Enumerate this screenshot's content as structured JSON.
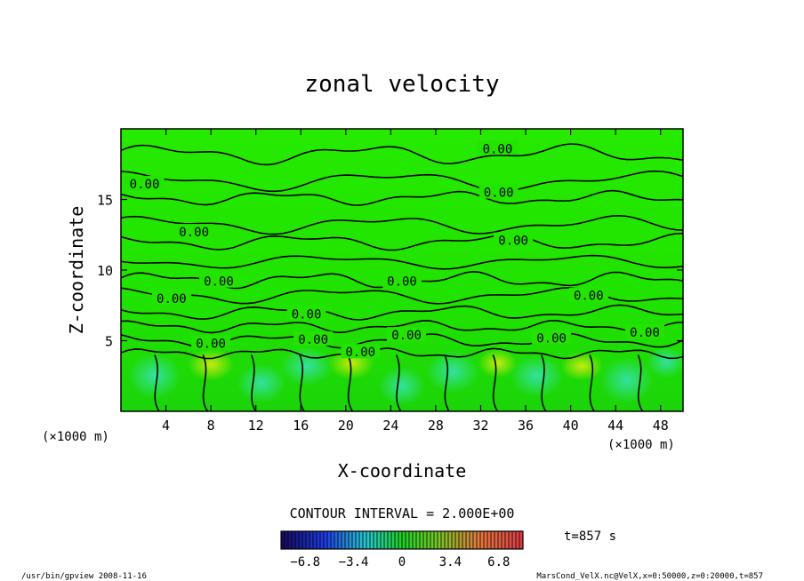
{
  "chart_data": {
    "type": "heatmap",
    "title": "zonal velocity",
    "xlabel": "X-coordinate",
    "ylabel": "Z-coordinate",
    "x_unit_left": "(×1000 m)",
    "x_unit_right": "(×1000 m)",
    "xlim": [
      0,
      50
    ],
    "ylim": [
      0,
      20
    ],
    "x_ticks": [
      {
        "v": 4,
        "label": "4"
      },
      {
        "v": 8,
        "label": "8"
      },
      {
        "v": 12,
        "label": "12"
      },
      {
        "v": 16,
        "label": "16"
      },
      {
        "v": 20,
        "label": "20"
      },
      {
        "v": 24,
        "label": "24"
      },
      {
        "v": 28,
        "label": "28"
      },
      {
        "v": 32,
        "label": "32"
      },
      {
        "v": 36,
        "label": "36"
      },
      {
        "v": 40,
        "label": "40"
      },
      {
        "v": 44,
        "label": "44"
      },
      {
        "v": 48,
        "label": "48"
      }
    ],
    "y_ticks": [
      {
        "v": 5,
        "label": "5"
      },
      {
        "v": 10,
        "label": "10"
      },
      {
        "v": 15,
        "label": "15"
      }
    ],
    "contour_labels": [
      {
        "x": 33.5,
        "z": 18.6,
        "text": "0.00"
      },
      {
        "x": 2.1,
        "z": 16.1,
        "text": "0.00"
      },
      {
        "x": 33.6,
        "z": 15.5,
        "text": "0.00"
      },
      {
        "x": 6.5,
        "z": 12.7,
        "text": "0.00"
      },
      {
        "x": 34.9,
        "z": 12.1,
        "text": "0.00"
      },
      {
        "x": 8.7,
        "z": 9.2,
        "text": "0.00"
      },
      {
        "x": 25.0,
        "z": 9.2,
        "text": "0.00"
      },
      {
        "x": 4.5,
        "z": 8.0,
        "text": "0.00"
      },
      {
        "x": 41.6,
        "z": 8.2,
        "text": "0.00"
      },
      {
        "x": 16.5,
        "z": 6.9,
        "text": "0.00"
      },
      {
        "x": 46.6,
        "z": 5.6,
        "text": "0.00"
      },
      {
        "x": 8.0,
        "z": 4.8,
        "text": "0.00"
      },
      {
        "x": 17.1,
        "z": 5.1,
        "text": "0.00"
      },
      {
        "x": 25.4,
        "z": 5.4,
        "text": "0.00"
      },
      {
        "x": 38.3,
        "z": 5.2,
        "text": "0.00"
      },
      {
        "x": 21.3,
        "z": 4.2,
        "text": "0.00"
      }
    ],
    "colorbar": {
      "min": -8.5,
      "max": 8.5,
      "ticks": [
        {
          "v": -6.8,
          "label": "−6.8"
        },
        {
          "v": -3.4,
          "label": "−3.4"
        },
        {
          "v": 0,
          "label": "0"
        },
        {
          "v": 3.4,
          "label": "3.4"
        },
        {
          "v": 6.8,
          "label": "6.8"
        }
      ]
    },
    "contour_interval_label": "CONTOUR INTERVAL = 2.000E+00",
    "time_label": "t=857 s",
    "colors": {
      "field": "#22e400",
      "field_dark": "#18cc00",
      "cyan": "#29e08a",
      "yellow": "#a8e800",
      "line": "#000000"
    }
  },
  "footer": {
    "left": "/usr/bin/gpview  2008-11-16",
    "right": "MarsCond_VelX.nc@VelX,x=0:50000,z=0:20000,t=857"
  }
}
